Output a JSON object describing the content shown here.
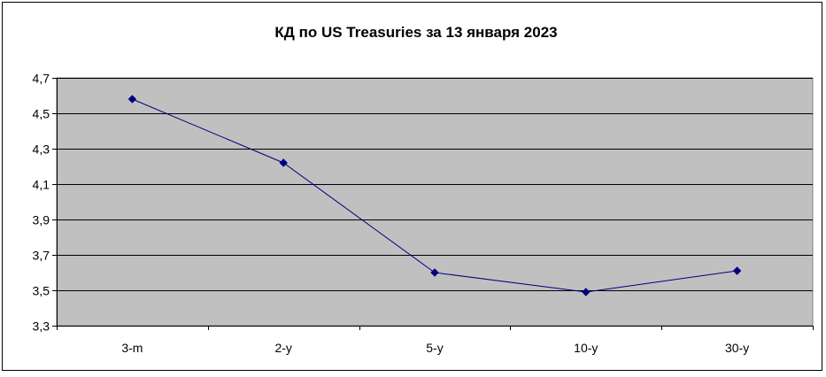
{
  "chart_data": {
    "type": "line",
    "title": "КД по US Treasuries за 13 января 2023",
    "xlabel": "",
    "ylabel": "",
    "categories": [
      "3-m",
      "2-y",
      "5-y",
      "10-y",
      "30-y"
    ],
    "series": [
      {
        "values": [
          4.58,
          4.22,
          3.6,
          3.49,
          3.61
        ],
        "color": "#000080"
      }
    ],
    "ylim": [
      3.3,
      4.7
    ],
    "yticks": [
      3.3,
      3.5,
      3.7,
      3.9,
      4.1,
      4.3,
      4.5,
      4.7
    ],
    "ytick_labels": [
      "3,3",
      "3,5",
      "3,7",
      "3,9",
      "4,1",
      "4,3",
      "4,5",
      "4,7"
    ],
    "grid": true,
    "legend": "none",
    "plot_background": "#c0c0c0",
    "gridline_color": "#000000"
  }
}
